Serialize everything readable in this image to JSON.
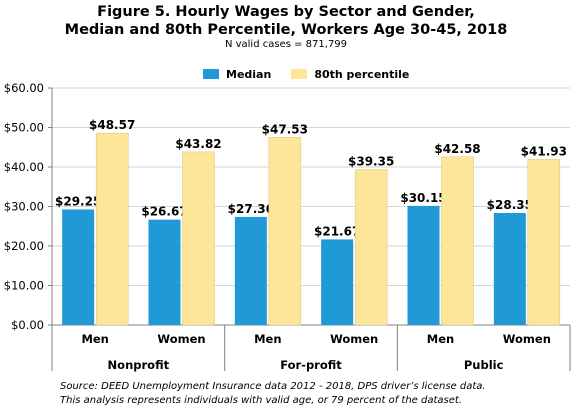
{
  "chart_data": {
    "type": "bar",
    "title_line1": "Figure 5. Hourly Wages by Sector and Gender,",
    "title_line2": "Median and 80th Percentile, Workers Age 30-45, 2018",
    "subtitle": "N valid cases = 871,799",
    "categories": [
      "Men",
      "Women",
      "Men",
      "Women",
      "Men",
      "Women"
    ],
    "groups": [
      "Nonprofit",
      "For-profit",
      "Public"
    ],
    "series": [
      {
        "name": "Median",
        "color": "#1f9ad6",
        "values": [
          29.25,
          26.67,
          27.36,
          21.67,
          30.15,
          28.35
        ],
        "labels": [
          "$29.25",
          "$26.67",
          "$27.36",
          "$21.67",
          "$30.15",
          "$28.35"
        ]
      },
      {
        "name": "80th percentile",
        "color": "#fde59a",
        "values": [
          48.57,
          43.82,
          47.53,
          39.35,
          42.58,
          41.93
        ],
        "labels": [
          "$48.57",
          "$43.82",
          "$47.53",
          "$39.35",
          "$42.58",
          "$41.93"
        ]
      }
    ],
    "yticks": [
      0,
      10,
      20,
      30,
      40,
      50,
      60
    ],
    "ytick_labels": [
      "$0.00",
      "$10.00",
      "$20.00",
      "$30.00",
      "$40.00",
      "$50.00",
      "$60.00"
    ],
    "ylim": [
      0,
      60
    ],
    "grid": true,
    "legend_position": "top-center"
  },
  "footnote_line1": "Source: DEED Unemployment Insurance data 2012 - 2018, DPS driver’s license data.",
  "footnote_line2": "This analysis represents individuals with valid age, or 79 percent of the dataset."
}
